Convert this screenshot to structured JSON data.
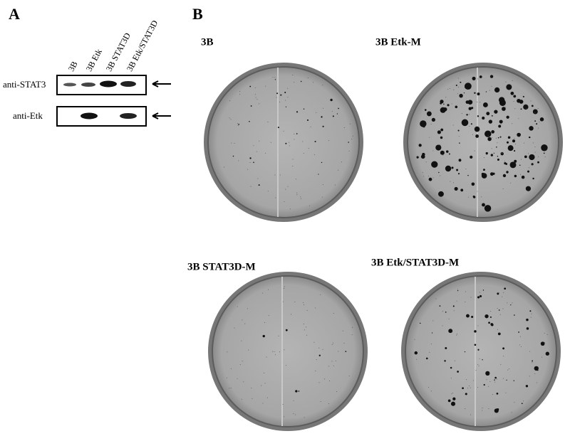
{
  "panel_a": {
    "label": "A",
    "lanes": [
      "3B",
      "3B Etk",
      "3B STAT3D",
      "3B Etk/STAT3D"
    ],
    "blots": [
      "anti-STAT3",
      "anti-Etk"
    ]
  },
  "panel_b": {
    "label": "B",
    "plates": [
      "3B",
      "3B Etk-M",
      "3B STAT3D-M",
      "3B Etk/STAT3D-M"
    ]
  }
}
